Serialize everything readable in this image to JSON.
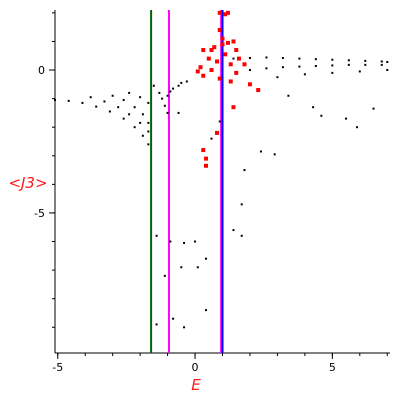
{
  "chart_data": {
    "type": "scatter",
    "title": "",
    "xlabel": "E",
    "ylabel": "<J3>",
    "xlim": [
      -5.1,
      7.1
    ],
    "ylim": [
      -9.9,
      2.1
    ],
    "x_ticks": [
      -5,
      0,
      5
    ],
    "x_tick_labels": [
      "-5",
      "0",
      "5"
    ],
    "y_ticks": [
      0,
      -5
    ],
    "y_tick_labels": [
      "0",
      "-5"
    ],
    "grid": false,
    "legend": "none",
    "vertical_lines": [
      {
        "x": -1.6,
        "color": "#006400"
      },
      {
        "x": -0.95,
        "color": "#ff00ff"
      },
      {
        "x": 0.95,
        "color": "#ff00ff"
      },
      {
        "x": 1.0,
        "color": "#0000ff"
      }
    ],
    "series": [
      {
        "color": "#000000",
        "values": [
          {
            "x": -5.1,
            "y": -1.05
          },
          {
            "x": -4.6,
            "y": -1.08
          },
          {
            "x": -4.1,
            "y": -1.15
          },
          {
            "x": -3.6,
            "y": -1.28
          },
          {
            "x": -3.1,
            "y": -1.45
          },
          {
            "x": -2.6,
            "y": -1.7
          },
          {
            "x": -2.2,
            "y": -2.0
          },
          {
            "x": -1.9,
            "y": -2.3
          },
          {
            "x": -1.7,
            "y": -2.6
          },
          {
            "x": -3.8,
            "y": -0.95
          },
          {
            "x": -3.3,
            "y": -1.1
          },
          {
            "x": -2.8,
            "y": -1.3
          },
          {
            "x": -2.4,
            "y": -1.55
          },
          {
            "x": -2.0,
            "y": -1.85
          },
          {
            "x": -1.7,
            "y": -2.15
          },
          {
            "x": -3.0,
            "y": -0.9
          },
          {
            "x": -2.6,
            "y": -1.05
          },
          {
            "x": -2.2,
            "y": -1.3
          },
          {
            "x": -1.9,
            "y": -1.55
          },
          {
            "x": -1.7,
            "y": -1.85
          },
          {
            "x": -2.4,
            "y": -0.8
          },
          {
            "x": -2.0,
            "y": -0.95
          },
          {
            "x": -1.7,
            "y": -1.15
          },
          {
            "x": -1.5,
            "y": -0.55
          },
          {
            "x": -1.3,
            "y": -0.8
          },
          {
            "x": -1.2,
            "y": -1.0
          },
          {
            "x": -1.1,
            "y": -1.25
          },
          {
            "x": -1.0,
            "y": -1.5
          },
          {
            "x": -1.0,
            "y": -0.9
          },
          {
            "x": -0.8,
            "y": -0.65
          },
          {
            "x": -0.5,
            "y": -0.45
          },
          {
            "x": -0.3,
            "y": -0.4
          },
          {
            "x": -0.6,
            "y": -0.55
          },
          {
            "x": -0.9,
            "y": -0.75
          },
          {
            "x": 0.2,
            "y": 0.1
          },
          {
            "x": 0.8,
            "y": 0.3
          },
          {
            "x": 1.4,
            "y": 0.4
          },
          {
            "x": 2.0,
            "y": 0.42
          },
          {
            "x": 2.6,
            "y": 0.44
          },
          {
            "x": 3.2,
            "y": 0.42
          },
          {
            "x": 3.8,
            "y": 0.4
          },
          {
            "x": 4.4,
            "y": 0.38
          },
          {
            "x": 5.0,
            "y": 0.36
          },
          {
            "x": 5.6,
            "y": 0.34
          },
          {
            "x": 6.2,
            "y": 0.32
          },
          {
            "x": 6.8,
            "y": 0.3
          },
          {
            "x": 7.0,
            "y": 0.28
          },
          {
            "x": 2.0,
            "y": 0.0
          },
          {
            "x": 2.6,
            "y": 0.06
          },
          {
            "x": 3.2,
            "y": 0.1
          },
          {
            "x": 3.8,
            "y": 0.12
          },
          {
            "x": 4.4,
            "y": 0.14
          },
          {
            "x": 5.0,
            "y": 0.16
          },
          {
            "x": 5.6,
            "y": 0.18
          },
          {
            "x": 6.2,
            "y": 0.18
          },
          {
            "x": 6.8,
            "y": 0.18
          },
          {
            "x": 3.0,
            "y": -0.25
          },
          {
            "x": 4.0,
            "y": -0.15
          },
          {
            "x": 5.0,
            "y": -0.1
          },
          {
            "x": 6.0,
            "y": -0.05
          },
          {
            "x": 7.0,
            "y": 0.0
          },
          {
            "x": 3.4,
            "y": -0.9
          },
          {
            "x": 4.3,
            "y": -1.3
          },
          {
            "x": 5.5,
            "y": -1.7
          },
          {
            "x": 6.5,
            "y": -1.35
          },
          {
            "x": 5.9,
            "y": -2.0
          },
          {
            "x": 4.6,
            "y": -1.6
          },
          {
            "x": 2.4,
            "y": -2.85
          },
          {
            "x": 2.9,
            "y": -2.95
          },
          {
            "x": 1.8,
            "y": -3.5
          },
          {
            "x": 1.7,
            "y": -4.7
          },
          {
            "x": 1.4,
            "y": -5.6
          },
          {
            "x": 1.7,
            "y": -5.8
          },
          {
            "x": -1.4,
            "y": -5.8
          },
          {
            "x": -0.9,
            "y": -6.0
          },
          {
            "x": -0.4,
            "y": -6.05
          },
          {
            "x": 0.0,
            "y": -6.0
          },
          {
            "x": -0.5,
            "y": -6.9
          },
          {
            "x": 0.1,
            "y": -6.9
          },
          {
            "x": -1.1,
            "y": -7.2
          },
          {
            "x": -1.4,
            "y": -8.9
          },
          {
            "x": -0.8,
            "y": -8.7
          },
          {
            "x": -0.4,
            "y": -9.0
          },
          {
            "x": 0.4,
            "y": -8.4
          },
          {
            "x": 0.4,
            "y": -6.6
          },
          {
            "x": 0.6,
            "y": -2.4
          },
          {
            "x": -0.6,
            "y": -1.5
          },
          {
            "x": 0.9,
            "y": -1.8
          }
        ]
      },
      {
        "color": "#ff0000",
        "values": [
          {
            "x": 0.9,
            "y": 2.0
          },
          {
            "x": 1.1,
            "y": 1.95
          },
          {
            "x": 1.2,
            "y": 2.0
          },
          {
            "x": 0.9,
            "y": 1.4
          },
          {
            "x": 1.0,
            "y": 1.1
          },
          {
            "x": 1.2,
            "y": 0.95
          },
          {
            "x": 1.4,
            "y": 1.0
          },
          {
            "x": 0.7,
            "y": 0.8
          },
          {
            "x": 0.6,
            "y": 0.7
          },
          {
            "x": 0.3,
            "y": 0.7
          },
          {
            "x": 0.5,
            "y": 0.4
          },
          {
            "x": 0.8,
            "y": 0.3
          },
          {
            "x": 1.1,
            "y": 0.55
          },
          {
            "x": 1.5,
            "y": 0.7
          },
          {
            "x": 1.6,
            "y": 0.4
          },
          {
            "x": 1.8,
            "y": 0.2
          },
          {
            "x": 1.5,
            "y": -0.1
          },
          {
            "x": 0.6,
            "y": 0.0
          },
          {
            "x": 0.2,
            "y": 0.1
          },
          {
            "x": 0.3,
            "y": -0.2
          },
          {
            "x": 0.9,
            "y": -0.3
          },
          {
            "x": 1.3,
            "y": -0.4
          },
          {
            "x": 2.0,
            "y": -0.5
          },
          {
            "x": 2.3,
            "y": -0.7
          },
          {
            "x": 1.4,
            "y": -1.3
          },
          {
            "x": 0.8,
            "y": -2.2
          },
          {
            "x": 0.4,
            "y": -3.1
          },
          {
            "x": 0.4,
            "y": -3.35
          },
          {
            "x": 0.3,
            "y": -2.8
          },
          {
            "x": 1.0,
            "y": 0.9
          },
          {
            "x": 1.3,
            "y": 0.2
          },
          {
            "x": 0.1,
            "y": -0.05
          }
        ]
      }
    ]
  }
}
